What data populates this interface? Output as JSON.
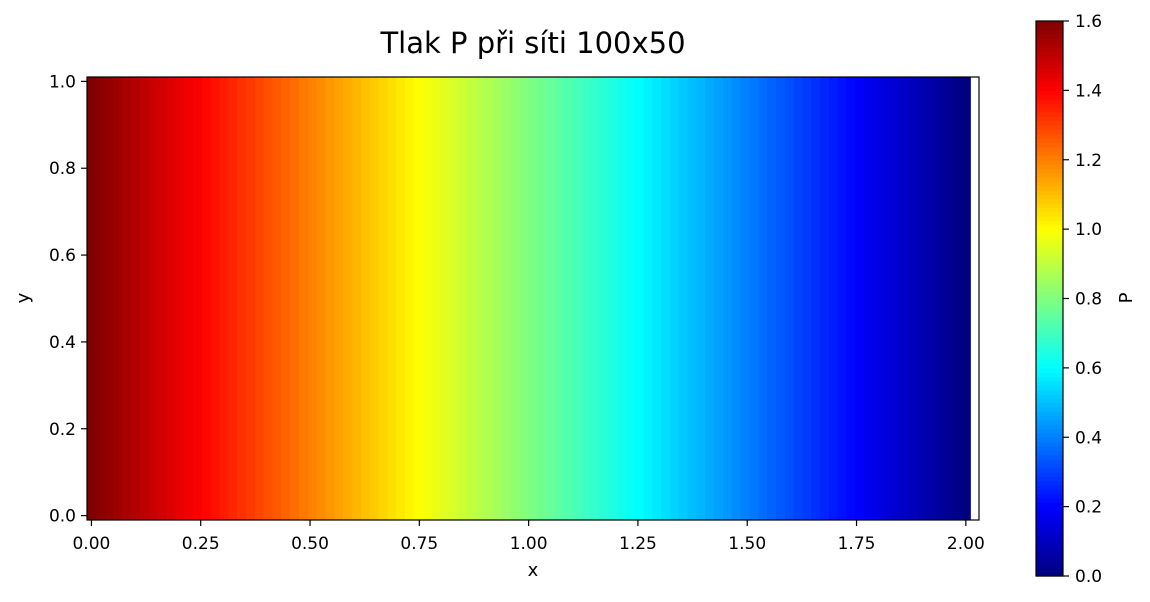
{
  "chart_data": {
    "type": "heatmap",
    "title": "Tlak P při síti 100x50",
    "xlabel": "x",
    "ylabel": "y",
    "xlim": [
      -0.0101,
      2.0301
    ],
    "ylim": [
      -0.0101,
      1.0101
    ],
    "x_ticks": [
      0.0,
      0.25,
      0.5,
      0.75,
      1.0,
      1.25,
      1.5,
      1.75,
      2.0
    ],
    "x_tick_labels": [
      "0.00",
      "0.25",
      "0.50",
      "0.75",
      "1.00",
      "1.25",
      "1.50",
      "1.75",
      "2.00"
    ],
    "y_ticks": [
      0.0,
      0.2,
      0.4,
      0.6,
      0.8,
      1.0
    ],
    "y_tick_labels": [
      "0.0",
      "0.2",
      "0.4",
      "0.6",
      "0.8",
      "1.0"
    ],
    "grid": {
      "nx": 100,
      "ny": 50,
      "x_range": [
        0.0,
        2.0
      ],
      "y_range": [
        0.0,
        1.0
      ]
    },
    "field": "P varies only with x, decreasing linearly",
    "p_at_x": [
      [
        0.0,
        1.6
      ],
      [
        2.0,
        0.0
      ]
    ],
    "colorbar": {
      "label": "P",
      "colormap": "jet",
      "range": [
        0.0,
        1.6
      ],
      "ticks": [
        0.0,
        0.2,
        0.4,
        0.6,
        0.8,
        1.0,
        1.2,
        1.4,
        1.6
      ],
      "tick_labels": [
        "0.0",
        "0.2",
        "0.4",
        "0.6",
        "0.8",
        "1.0",
        "1.2",
        "1.4",
        "1.6"
      ]
    },
    "grid_lines": false,
    "legend": "none"
  }
}
